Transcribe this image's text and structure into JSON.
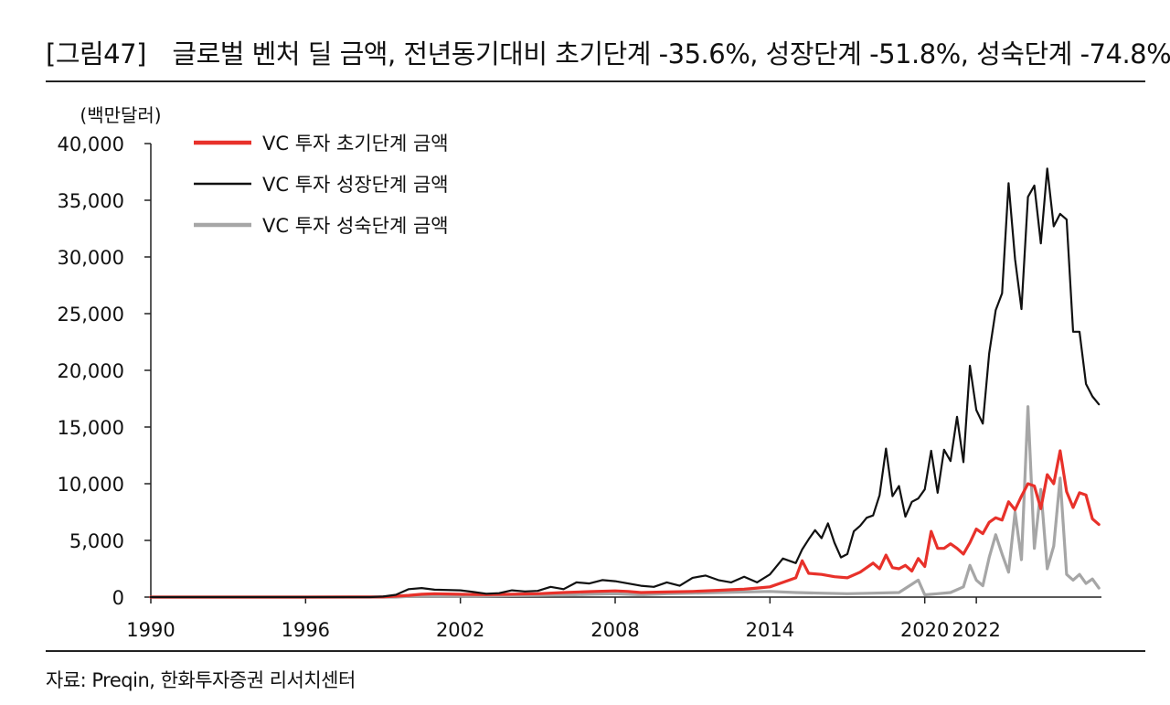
{
  "title": "[그림47]　글로벌 벤처 딜 금액, 전년동기대비 초기단계 -35.6%, 성장단계 -51.8%, 성숙단계 -74.8%",
  "source": "자료: Preqin, 한화투자증권 리서치센터",
  "chart_data": {
    "type": "line",
    "unit_label": "(백만달러)",
    "ylim": [
      0,
      40000
    ],
    "y_ticks": [
      "0",
      "5,000",
      "10,000",
      "15,000",
      "20,000",
      "25,000",
      "30,000",
      "35,000",
      "40,000"
    ],
    "y_tick_values": [
      0,
      5000,
      10000,
      15000,
      20000,
      25000,
      30000,
      35000,
      40000
    ],
    "x_ticks": [
      "1990",
      "1996",
      "2002",
      "2008",
      "2014",
      "2020",
      "2022"
    ],
    "x_tick_values": [
      1990,
      1996,
      2002,
      2008,
      2014,
      2020,
      2022
    ],
    "legend_position": "top-left",
    "grid": false,
    "series": [
      {
        "name": "VC 투자 초기단계 금액",
        "color": "#e8312a",
        "points": [
          [
            1990,
            0
          ],
          [
            1996,
            0
          ],
          [
            1999,
            20
          ],
          [
            2000,
            150
          ],
          [
            2000.5,
            250
          ],
          [
            2001,
            300
          ],
          [
            2002,
            250
          ],
          [
            2003,
            220
          ],
          [
            2004,
            260
          ],
          [
            2005,
            300
          ],
          [
            2006,
            400
          ],
          [
            2007,
            480
          ],
          [
            2008,
            550
          ],
          [
            2008.5,
            500
          ],
          [
            2009,
            400
          ],
          [
            2010,
            450
          ],
          [
            2011,
            500
          ],
          [
            2012,
            600
          ],
          [
            2012.5,
            650
          ],
          [
            2013,
            700
          ],
          [
            2013.5,
            800
          ],
          [
            2014,
            900
          ],
          [
            2014.5,
            1300
          ],
          [
            2015,
            1700
          ],
          [
            2015.25,
            3200
          ],
          [
            2015.5,
            2100
          ],
          [
            2016,
            2000
          ],
          [
            2016.5,
            1800
          ],
          [
            2017,
            1700
          ],
          [
            2017.5,
            2200
          ],
          [
            2018,
            3000
          ],
          [
            2018.25,
            2500
          ],
          [
            2018.5,
            3700
          ],
          [
            2018.75,
            2600
          ],
          [
            2019,
            2500
          ],
          [
            2019.25,
            2800
          ],
          [
            2019.5,
            2300
          ],
          [
            2019.75,
            3400
          ],
          [
            2020,
            2700
          ],
          [
            2020.25,
            5800
          ],
          [
            2020.5,
            4300
          ],
          [
            2020.75,
            4300
          ],
          [
            2021,
            4700
          ],
          [
            2021.25,
            4300
          ],
          [
            2021.5,
            3800
          ],
          [
            2021.75,
            4800
          ],
          [
            2022,
            6000
          ],
          [
            2022.25,
            5600
          ],
          [
            2022.5,
            6600
          ],
          [
            2022.75,
            7000
          ],
          [
            2023,
            6800
          ],
          [
            2023.25,
            8400
          ],
          [
            2023.5,
            7700
          ],
          [
            2023.75,
            8900
          ],
          [
            2024,
            10000
          ],
          [
            2024.25,
            9800
          ],
          [
            2024.5,
            7800
          ],
          [
            2024.75,
            10800
          ],
          [
            2025,
            10000
          ],
          [
            2025.25,
            12900
          ],
          [
            2025.5,
            9300
          ],
          [
            2025.75,
            7900
          ],
          [
            2026,
            9200
          ],
          [
            2026.25,
            9000
          ],
          [
            2026.5,
            6900
          ],
          [
            2026.75,
            6400
          ]
        ]
      },
      {
        "name": "VC 투자 성장단계 금액",
        "color": "#111111",
        "points": [
          [
            1990,
            0
          ],
          [
            1998.5,
            0
          ],
          [
            1999,
            50
          ],
          [
            1999.5,
            200
          ],
          [
            2000,
            700
          ],
          [
            2000.5,
            800
          ],
          [
            2001,
            650
          ],
          [
            2002,
            600
          ],
          [
            2002.5,
            450
          ],
          [
            2003,
            300
          ],
          [
            2003.5,
            350
          ],
          [
            2004,
            600
          ],
          [
            2004.5,
            500
          ],
          [
            2005,
            550
          ],
          [
            2005.5,
            900
          ],
          [
            2006,
            700
          ],
          [
            2006.5,
            1300
          ],
          [
            2007,
            1200
          ],
          [
            2007.5,
            1500
          ],
          [
            2008,
            1400
          ],
          [
            2008.5,
            1200
          ],
          [
            2009,
            1000
          ],
          [
            2009.5,
            900
          ],
          [
            2010,
            1300
          ],
          [
            2010.5,
            1000
          ],
          [
            2011,
            1700
          ],
          [
            2011.5,
            1900
          ],
          [
            2012,
            1500
          ],
          [
            2012.5,
            1300
          ],
          [
            2013,
            1800
          ],
          [
            2013.5,
            1300
          ],
          [
            2014,
            2000
          ],
          [
            2014.5,
            3400
          ],
          [
            2015,
            3000
          ],
          [
            2015.25,
            4200
          ],
          [
            2015.5,
            5100
          ],
          [
            2015.75,
            5900
          ],
          [
            2016,
            5200
          ],
          [
            2016.25,
            6500
          ],
          [
            2016.5,
            4800
          ],
          [
            2016.75,
            3500
          ],
          [
            2017,
            3800
          ],
          [
            2017.25,
            5800
          ],
          [
            2017.5,
            6300
          ],
          [
            2017.75,
            7000
          ],
          [
            2018,
            7200
          ],
          [
            2018.25,
            9000
          ],
          [
            2018.5,
            13100
          ],
          [
            2018.75,
            8900
          ],
          [
            2019,
            9800
          ],
          [
            2019.25,
            7100
          ],
          [
            2019.5,
            8400
          ],
          [
            2019.75,
            8700
          ],
          [
            2020,
            9500
          ],
          [
            2020.25,
            12900
          ],
          [
            2020.5,
            9200
          ],
          [
            2020.75,
            13000
          ],
          [
            2021,
            12000
          ],
          [
            2021.25,
            15900
          ],
          [
            2021.5,
            11900
          ],
          [
            2021.75,
            20400
          ],
          [
            2022,
            16500
          ],
          [
            2022.25,
            15300
          ],
          [
            2022.5,
            21500
          ],
          [
            2022.75,
            25300
          ],
          [
            2023,
            26800
          ],
          [
            2023.25,
            36500
          ],
          [
            2023.5,
            29800
          ],
          [
            2023.75,
            25400
          ],
          [
            2024,
            35300
          ],
          [
            2024.25,
            36300
          ],
          [
            2024.5,
            31200
          ],
          [
            2024.75,
            37800
          ],
          [
            2025,
            32700
          ],
          [
            2025.25,
            33800
          ],
          [
            2025.5,
            33300
          ],
          [
            2025.75,
            23400
          ],
          [
            2026,
            23400
          ],
          [
            2026.25,
            18800
          ],
          [
            2026.5,
            17700
          ],
          [
            2026.75,
            17000
          ]
        ]
      },
      {
        "name": "VC 투자 성숙단계 금액",
        "color": "#a6a6a6",
        "points": [
          [
            1990,
            0
          ],
          [
            1999.5,
            0
          ],
          [
            2000,
            60
          ],
          [
            2001,
            100
          ],
          [
            2002,
            80
          ],
          [
            2003,
            100
          ],
          [
            2004,
            130
          ],
          [
            2005,
            150
          ],
          [
            2006,
            180
          ],
          [
            2007,
            250
          ],
          [
            2008,
            300
          ],
          [
            2009,
            200
          ],
          [
            2010,
            300
          ],
          [
            2011,
            350
          ],
          [
            2012,
            400
          ],
          [
            2013,
            450
          ],
          [
            2014,
            500
          ],
          [
            2015,
            400
          ],
          [
            2016,
            350
          ],
          [
            2017,
            300
          ],
          [
            2018,
            350
          ],
          [
            2019,
            400
          ],
          [
            2019.75,
            1500
          ],
          [
            2020,
            200
          ],
          [
            2020.5,
            300
          ],
          [
            2021,
            400
          ],
          [
            2021.5,
            900
          ],
          [
            2021.75,
            2800
          ],
          [
            2022,
            1500
          ],
          [
            2022.25,
            1000
          ],
          [
            2022.5,
            3500
          ],
          [
            2022.75,
            5500
          ],
          [
            2023,
            3800
          ],
          [
            2023.25,
            2200
          ],
          [
            2023.5,
            7500
          ],
          [
            2023.75,
            3300
          ],
          [
            2024,
            16800
          ],
          [
            2024.25,
            4300
          ],
          [
            2024.5,
            9500
          ],
          [
            2024.75,
            2500
          ],
          [
            2025,
            4500
          ],
          [
            2025.25,
            10500
          ],
          [
            2025.5,
            2000
          ],
          [
            2025.75,
            1500
          ],
          [
            2026,
            2000
          ],
          [
            2026.25,
            1200
          ],
          [
            2026.5,
            1600
          ],
          [
            2026.75,
            800
          ]
        ]
      }
    ]
  }
}
